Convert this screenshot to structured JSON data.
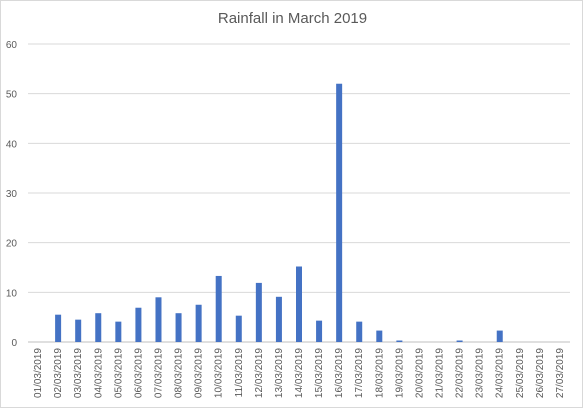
{
  "chart_data": {
    "type": "bar",
    "title": "Rainfall in March 2019",
    "xlabel": "",
    "ylabel": "",
    "ylim": [
      0,
      60
    ],
    "yticks": [
      0,
      10,
      20,
      30,
      40,
      50,
      60
    ],
    "grid": true,
    "legend": "none",
    "bar_color": "#4472c4",
    "categories": [
      "01/03/2019",
      "02/03/2019",
      "03/03/2019",
      "04/03/2019",
      "05/03/2019",
      "06/03/2019",
      "07/03/2019",
      "08/03/2019",
      "09/03/2019",
      "10/03/2019",
      "11/03/2019",
      "12/03/2019",
      "13/03/2019",
      "14/03/2019",
      "15/03/2019",
      "16/03/2019",
      "17/03/2019",
      "18/03/2019",
      "19/03/2019",
      "20/03/2019",
      "21/03/2019",
      "22/03/2019",
      "23/03/2019",
      "24/03/2019",
      "25/03/2019",
      "26/03/2019",
      "27/03/2019"
    ],
    "values": [
      0,
      5.5,
      4.5,
      5.8,
      4.1,
      6.9,
      9.0,
      5.8,
      7.5,
      13.3,
      5.3,
      11.9,
      9.1,
      15.2,
      4.3,
      52.0,
      4.1,
      2.3,
      0.3,
      0,
      0,
      0.3,
      0,
      2.3,
      0,
      0,
      0
    ]
  }
}
